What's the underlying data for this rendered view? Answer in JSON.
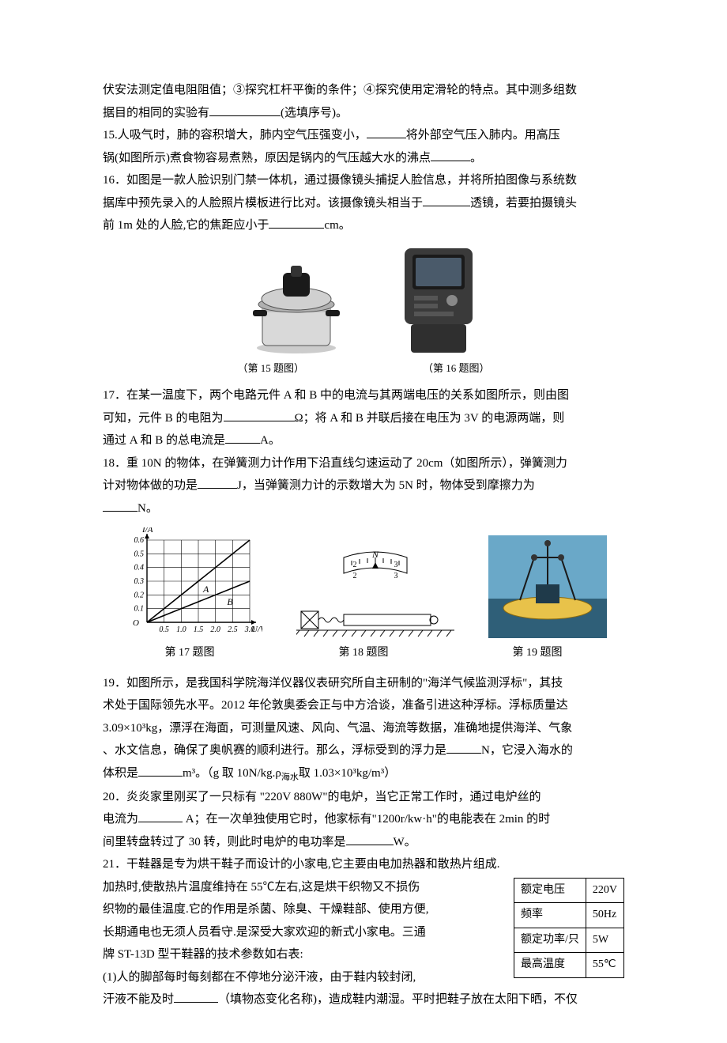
{
  "q14_tail": {
    "line1": "伏安法测定值电阻阻值；③探究杠杆平衡的条件；④探究使用定滑轮的特点。其中测多组数",
    "line2_a": "据目的相同的实验有",
    "line2_b": "(选填序号)。"
  },
  "q15": {
    "a": "15.人吸气时，肺的容积增大，肺内空气压强变小，",
    "b": "将外部空气压入肺内。用高压",
    "c": "锅(如图所示)煮食物容易煮熟，原因是锅内的气压越大水的沸点",
    "d": "。"
  },
  "q16": {
    "a": "16．如图是一款人脸识别门禁一体机，通过摄像镜头捕捉人脸信息，并将所拍图像与系统数",
    "b": "据库中预先录入的人脸照片模板进行比对。该摄像镜头相当于",
    "c": "透镜，若要拍摄镜头",
    "d": "前 1m 处的人脸,它的焦距应小于",
    "e": "cm。"
  },
  "figcaps_15_16": {
    "c15": "（第 15 题图）",
    "c16": "（第 16 题图）"
  },
  "q17": {
    "a": "17．在某一温度下，两个电路元件 A 和 B 中的电流与其两端电压的关系如图所示，则由图",
    "b": "可知，元件 B 的电阻为",
    "c": "Ω；将 A 和 B 并联后接在电压为 3V 的电源两端，则",
    "d": "通过 A 和 B 的总电流是",
    "e": "A。"
  },
  "q18": {
    "a": "18．重 10N 的物体，在弹簧测力计作用下沿直线匀速运动了 20cm（如图所示），弹簧测力",
    "b": "计对物体做的功是",
    "c": "J，当弹簧测力计的示数增大为 5N 时，物体受到摩擦力为",
    "d": "N。"
  },
  "chart17": {
    "ylabel": "I/A",
    "xlabel": "U/V",
    "xlim": [
      0,
      3.0
    ],
    "ylim": [
      0,
      0.6
    ],
    "xticks": [
      "0.5",
      "1.0",
      "1.5",
      "2.0",
      "2.5",
      "3.0"
    ],
    "yticks": [
      "0.1",
      "0.2",
      "0.3",
      "0.4",
      "0.5",
      "0.6"
    ],
    "labelA": "A",
    "labelB": "B",
    "axis_color": "#000000",
    "grid_color": "#000000",
    "lineA_x2": 3.0,
    "lineA_y2": 0.6,
    "lineB_x2": 3.0,
    "lineB_y2": 0.3
  },
  "fig18": {
    "N": "N",
    "t2": "2",
    "t3": "3"
  },
  "figcaps_17_19": {
    "c17": "第 17 题图",
    "c18": "第 18 题图",
    "c19": "第 19 题图"
  },
  "q19": {
    "a": "19．如图所示，是我国科学院海洋仪器仪表研究所自主研制的\"海洋气候监测浮标\"，其技",
    "b": "术处于国际领先水平。2012 年伦敦奥委会正与中方洽谈，准备引进这种浮标。浮标质量达",
    "c": "3.09×10³kg，漂浮在海面，可测量风速、风向、气温、海流等数据，准确地提供海洋、气象",
    "d": "、水文信息，确保了奥帆赛的顺利进行。那么，浮标受到的浮力是",
    "e": "N，它浸入海水的",
    "f": "体积是",
    "g": "m³。（g 取 10N/kg.ρ",
    "h": "海水",
    "i": "取 1.03×10³kg/m³）"
  },
  "q20": {
    "a": "20．炎炎家里刚买了一只标有 \"220V   880W\"的电炉，当它正常工作时，通过电炉丝的",
    "b": "电流为",
    "c": " A；在一次单独使用它时，他家标有\"1200r/kw·h\"的电能表在 2min 的时",
    "d": "间里转盘转过了 30 转，则此时电炉的电功率是",
    "e": "W。"
  },
  "q21": {
    "a": "21．干鞋器是专为烘干鞋子而设计的小家电,它主要由电加热器和散热片组成.",
    "b": "加热时,使散热片温度维持在 55℃左右,这是烘干织物又不损伤",
    "c": "织物的最佳温度.它的作用是杀菌、除臭、干燥鞋部、使用方便,",
    "d": "长期通电也无须人员看守.是深受大家欢迎的新式小家电。三通",
    "e": "牌 ST-13D 型干鞋器的技术参数如右表:",
    "f": "(1)人的脚部每时每刻都在不停地分泌汗液，由于鞋内较封闭,",
    "g": "汗液不能及时",
    "h": "（填物态变化名称)，造成鞋内潮湿。平时把鞋子放在太阳下晒，不仅"
  },
  "table21": {
    "rows": [
      [
        "额定电压",
        "220V"
      ],
      [
        "频率",
        "50Hz"
      ],
      [
        "额定功率/只",
        "5W"
      ],
      [
        "最高温度",
        "55℃"
      ]
    ]
  },
  "blanks": {
    "w_long": "90px",
    "w_med": "60px",
    "w_short": "44px"
  }
}
